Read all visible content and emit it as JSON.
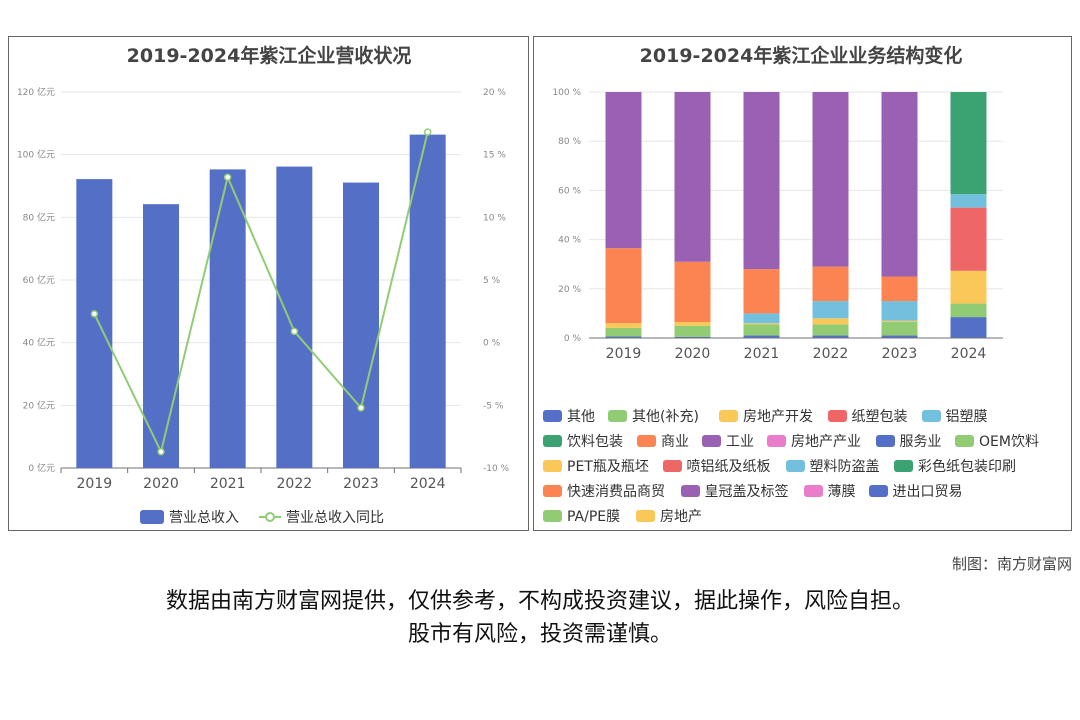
{
  "chart_data": [
    {
      "type": "bar",
      "title": "2019-2024年紫江企业营收状况",
      "categories": [
        "2019",
        "2020",
        "2021",
        "2022",
        "2023",
        "2024"
      ],
      "series": [
        {
          "name": "营业总收入",
          "axis": "left",
          "type": "bar",
          "color": "#5470c6",
          "values": [
            92.2,
            84.2,
            95.3,
            96.2,
            91.1,
            106.4
          ]
        },
        {
          "name": "营业总收入同比",
          "axis": "right",
          "type": "line",
          "color": "#91cc75",
          "values": [
            2.3,
            -8.7,
            13.2,
            0.9,
            -5.2,
            16.8
          ]
        }
      ],
      "y_left": {
        "ylim": [
          0,
          120
        ],
        "ticks": [
          "0 亿元",
          "20 亿元",
          "40 亿元",
          "60 亿元",
          "80 亿元",
          "100 亿元",
          "120 亿元"
        ]
      },
      "y_right": {
        "ylim": [
          -10,
          20
        ],
        "ticks": [
          "-10 %",
          "-5 %",
          "0 %",
          "5 %",
          "10 %",
          "15 %",
          "20 %"
        ]
      },
      "legend_position": "bottom",
      "grid": true
    },
    {
      "type": "bar",
      "stacked": true,
      "title": "2019-2024年紫江企业业务结构变化",
      "categories": [
        "2019",
        "2020",
        "2021",
        "2022",
        "2023",
        "2024"
      ],
      "ylim": [
        0,
        100
      ],
      "y_ticks": [
        "0 %",
        "20 %",
        "40 %",
        "60 %",
        "80 %",
        "100 %"
      ],
      "series": [
        {
          "name": "其他",
          "color": "#5470c6",
          "values": [
            0.6,
            0.5,
            1.0,
            1.0,
            1.0,
            8.5
          ]
        },
        {
          "name": "其他(补充)",
          "color": "#91cc75",
          "values": [
            3.5,
            4.5,
            4.5,
            4.5,
            5.5,
            5.5
          ]
        },
        {
          "name": "房地产开发",
          "color": "#fac858",
          "values": [
            1.9,
            1.5,
            0.5,
            2.5,
            0.5,
            13.3
          ]
        },
        {
          "name": "纸塑包装",
          "color": "#ee6666",
          "values": [
            0,
            0,
            0,
            0,
            0,
            25.7
          ]
        },
        {
          "name": "铝塑膜",
          "color": "#73c0de",
          "values": [
            0,
            0,
            4.0,
            7.0,
            8.0,
            5.5
          ]
        },
        {
          "name": "饮料包装",
          "color": "#3ba272",
          "values": [
            0,
            0,
            0,
            0,
            0,
            41.5
          ]
        },
        {
          "name": "商业",
          "color": "#fc8452",
          "values": [
            30.5,
            24.5,
            18.0,
            14.0,
            10.0,
            0
          ]
        },
        {
          "name": "工业",
          "color": "#9a60b4",
          "values": [
            63.5,
            69.0,
            72.0,
            71.0,
            75.0,
            0
          ]
        },
        {
          "name": "房地产产业",
          "color": "#ea7ccc",
          "values": [
            0,
            0,
            0,
            0,
            0,
            0
          ]
        },
        {
          "name": "服务业",
          "color": "#5470c6",
          "values": [
            0,
            0,
            0,
            0,
            0,
            0
          ]
        },
        {
          "name": "OEM饮料",
          "color": "#91cc75",
          "values": [
            0,
            0,
            0,
            0,
            0,
            0
          ]
        },
        {
          "name": "PET瓶及瓶坯",
          "color": "#fac858",
          "values": [
            0,
            0,
            0,
            0,
            0,
            0
          ]
        },
        {
          "name": "喷铝纸及纸板",
          "color": "#ee6666",
          "values": [
            0,
            0,
            0,
            0,
            0,
            0
          ]
        },
        {
          "name": "塑料防盗盖",
          "color": "#73c0de",
          "values": [
            0,
            0,
            0,
            0,
            0,
            0
          ]
        },
        {
          "name": "彩色纸包装印刷",
          "color": "#3ba272",
          "values": [
            0,
            0,
            0,
            0,
            0,
            0
          ]
        },
        {
          "name": "快速消费品商贸",
          "color": "#fc8452",
          "values": [
            0,
            0,
            0,
            0,
            0,
            0
          ]
        },
        {
          "name": "皇冠盖及标签",
          "color": "#9a60b4",
          "values": [
            0,
            0,
            0,
            0,
            0,
            0
          ]
        },
        {
          "name": "薄膜",
          "color": "#ea7ccc",
          "values": [
            0,
            0,
            0,
            0,
            0,
            0
          ]
        },
        {
          "name": "进出口贸易",
          "color": "#5470c6",
          "values": [
            0,
            0,
            0,
            0,
            0,
            0
          ]
        },
        {
          "name": "PA/PE膜",
          "color": "#91cc75",
          "values": [
            0,
            0,
            0,
            0,
            0,
            0
          ]
        },
        {
          "name": "房地产",
          "color": "#fac858",
          "values": [
            0,
            0,
            0,
            0,
            0,
            0
          ]
        }
      ],
      "legend_position": "bottom"
    }
  ],
  "credit": "制图：南方财富网",
  "disclaimer_line1": "数据由南方财富网提供，仅供参考，不构成投资建议，据此操作，风险自担。",
  "disclaimer_line2": "股市有风险，投资需谨慎。"
}
